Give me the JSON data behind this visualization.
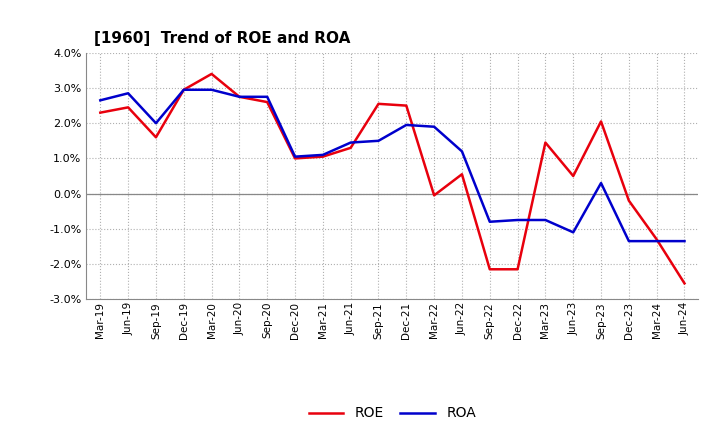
{
  "title": "[1960]  Trend of ROE and ROA",
  "labels": [
    "Mar-19",
    "Jun-19",
    "Sep-19",
    "Dec-19",
    "Mar-20",
    "Jun-20",
    "Sep-20",
    "Dec-20",
    "Mar-21",
    "Jun-21",
    "Sep-21",
    "Dec-21",
    "Mar-22",
    "Jun-22",
    "Sep-22",
    "Dec-22",
    "Mar-23",
    "Jun-23",
    "Sep-23",
    "Dec-23",
    "Mar-24",
    "Jun-24"
  ],
  "ROE": [
    2.3,
    2.45,
    1.6,
    2.95,
    3.4,
    2.75,
    2.6,
    1.0,
    1.05,
    1.3,
    2.55,
    2.5,
    -0.05,
    0.55,
    -2.15,
    -2.15,
    1.45,
    0.5,
    2.05,
    -0.2,
    -1.3,
    -2.55
  ],
  "ROA": [
    2.65,
    2.85,
    2.0,
    2.95,
    2.95,
    2.75,
    2.75,
    1.05,
    1.1,
    1.45,
    1.5,
    1.95,
    1.9,
    1.2,
    -0.8,
    -0.75,
    -0.75,
    -1.1,
    0.3,
    -1.35,
    -1.35,
    -1.35
  ],
  "roe_color": "#e8000d",
  "roa_color": "#0000cc",
  "ylim": [
    -3.0,
    4.0
  ],
  "yticks": [
    -3.0,
    -2.0,
    -1.0,
    0.0,
    1.0,
    2.0,
    3.0,
    4.0
  ],
  "background_color": "#ffffff",
  "grid_color": "#b0b0b0",
  "line_width": 1.8,
  "fig_width": 7.2,
  "fig_height": 4.4,
  "dpi": 100
}
